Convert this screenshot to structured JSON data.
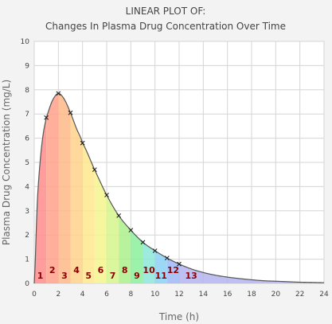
{
  "chart_data": {
    "type": "line",
    "title": "LINEAR PLOT OF:",
    "subtitle": "Changes In Plasma Drug Concentration Over Time",
    "xlabel": "Time (h)",
    "ylabel": "Plasma Drug Concentration (mg/L)",
    "xlim": [
      0,
      24
    ],
    "ylim": [
      0,
      10
    ],
    "x_ticks": [
      "0",
      "2",
      "4",
      "6",
      "8",
      "10",
      "12",
      "14",
      "16",
      "18",
      "20",
      "22",
      "24"
    ],
    "y_ticks": [
      "0",
      "1",
      "2",
      "3",
      "4",
      "5",
      "6",
      "7",
      "8",
      "9",
      "10"
    ],
    "grid": true,
    "series": [
      {
        "marker": "x",
        "x": [
          1,
          2,
          3,
          4,
          5,
          6,
          7,
          8,
          9,
          10,
          11,
          12
        ],
        "y": [
          6.85,
          7.85,
          7.05,
          5.8,
          4.7,
          3.65,
          2.8,
          2.2,
          1.7,
          1.35,
          1.05,
          0.8
        ]
      }
    ],
    "curve": {
      "x": [
        0,
        0.25,
        0.5,
        0.75,
        1,
        1.5,
        2,
        2.5,
        3,
        3.5,
        4,
        5,
        6,
        7,
        8,
        9,
        10,
        11,
        12,
        13,
        14,
        15,
        16,
        17,
        18,
        19,
        20,
        21,
        22,
        23,
        24
      ],
      "y": [
        0,
        3.3,
        5.1,
        6.2,
        6.85,
        7.55,
        7.85,
        7.6,
        7.05,
        6.4,
        5.8,
        4.7,
        3.65,
        2.8,
        2.2,
        1.7,
        1.35,
        1.05,
        0.8,
        0.6,
        0.45,
        0.34,
        0.26,
        0.2,
        0.15,
        0.11,
        0.09,
        0.07,
        0.05,
        0.04,
        0.03
      ]
    },
    "segments": {
      "labels": [
        "1",
        "2",
        "3",
        "4",
        "5",
        "6",
        "7",
        "8",
        "9",
        "10",
        "11",
        "12",
        "13"
      ],
      "bounds": [
        0,
        1,
        2,
        3,
        4,
        5,
        6,
        7,
        8,
        9,
        10,
        11,
        12,
        24
      ],
      "colors": [
        "#ff8c8c",
        "#ffa18a",
        "#ffb888",
        "#ffd28a",
        "#ffe88c",
        "#f3f58c",
        "#d6f58c",
        "#adf08c",
        "#8cf09c",
        "#8ce8d8",
        "#8cd0f5",
        "#9cb8f5",
        "#b4b4f0"
      ]
    },
    "colors": {
      "curve": "#555555",
      "marker": "#222222",
      "grid": "#d5d5d5",
      "plot_background": "#ffffff",
      "segment_label": "#8b0000"
    }
  }
}
